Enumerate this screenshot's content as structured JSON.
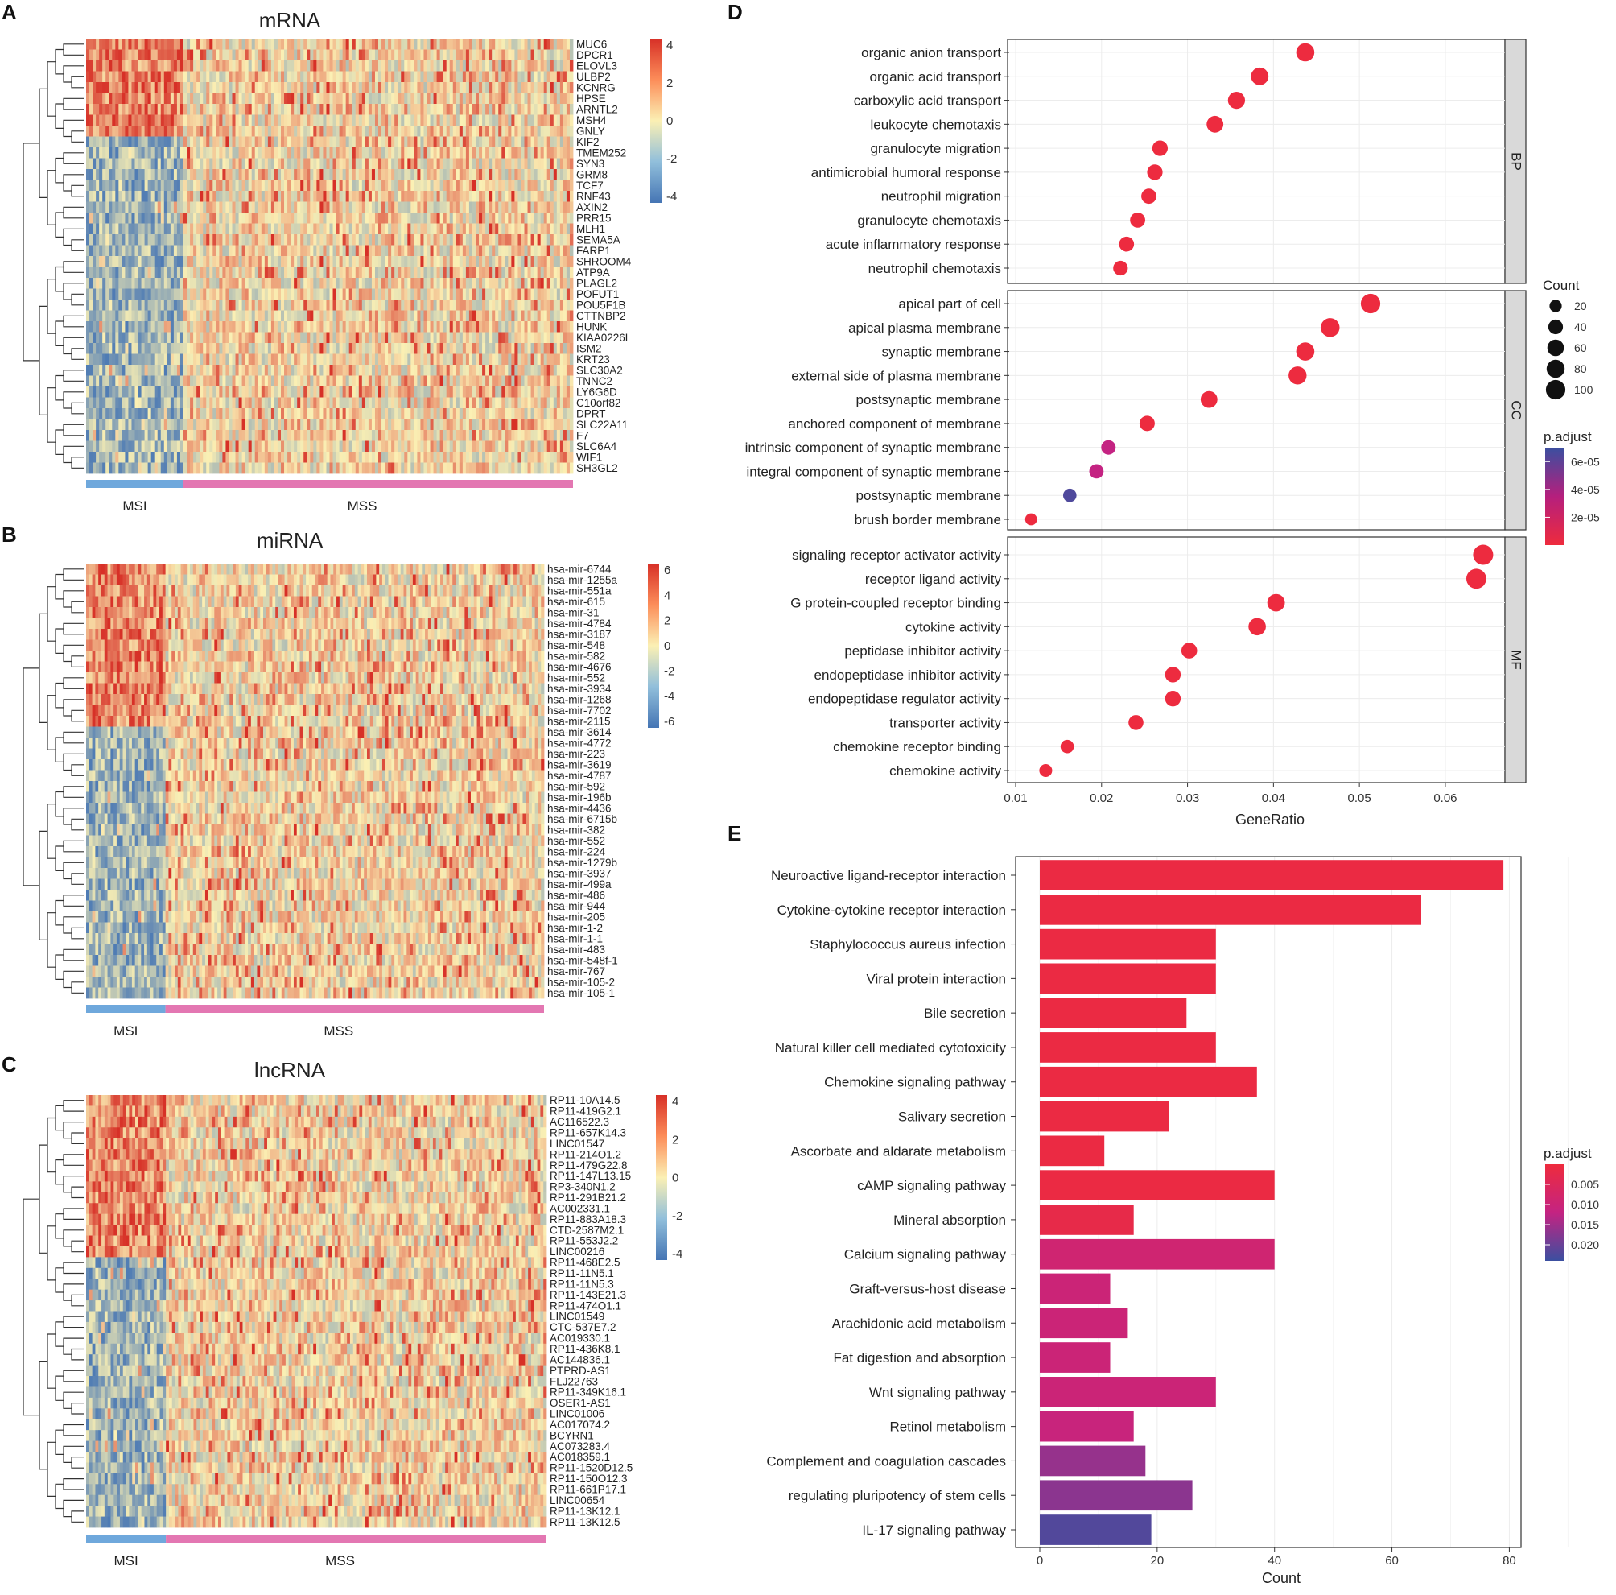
{
  "colors": {
    "heat_low": "#4575b4",
    "heat_mid": "#fbf0b4",
    "heat_high": "#d73027",
    "msi_bar": "#6fa8dc",
    "mss_bar": "#e377b2",
    "padj_low": "#ee2b3d",
    "padj_high": "#3b4fa0",
    "strip_fill": "#d9d9d9",
    "grid": "#ececec"
  },
  "chart_data": [
    {
      "panel": "A",
      "type": "heatmap",
      "title": "mRNA",
      "genes": [
        "MUC6",
        "DPCR1",
        "ELOVL3",
        "ULBP2",
        "KCNRG",
        "HPSE",
        "ARNTL2",
        "MSH4",
        "GNLY",
        "KIF2",
        "TMEM252",
        "SYN3",
        "GRM8",
        "TCF7",
        "RNF43",
        "AXIN2",
        "PRR15",
        "MLH1",
        "SEMA5A",
        "FARP1",
        "SHROOM4",
        "ATP9A",
        "PLAGL2",
        "POFUT1",
        "POU5F1B",
        "CTTNBP2",
        "HUNK",
        "KIAA0226L",
        "ISM2",
        "KRT23",
        "SLC30A2",
        "TNNC2",
        "LY6G6D",
        "C10orf82",
        "DPRT",
        "SLC22A11",
        "F7",
        "SLC6A4",
        "WIF1",
        "SH3GL2"
      ],
      "colorbar": {
        "ticks": [
          "4",
          "2",
          "0",
          "-2",
          "-4"
        ],
        "range": [
          -4,
          4
        ]
      },
      "groups": [
        {
          "label": "MSI",
          "fraction": 0.2
        },
        {
          "label": "MSS",
          "fraction": 0.8
        }
      ]
    },
    {
      "panel": "B",
      "type": "heatmap",
      "title": "miRNA",
      "genes": [
        "hsa-mir-6744",
        "hsa-mir-1255a",
        "hsa-mir-551a",
        "hsa-mir-615",
        "hsa-mir-31",
        "hsa-mir-4784",
        "hsa-mir-3187",
        "hsa-mir-548",
        "hsa-mir-582",
        "hsa-mir-4676",
        "hsa-mir-552",
        "hsa-mir-3934",
        "hsa-mir-1268",
        "hsa-mir-7702",
        "hsa-mir-2115",
        "hsa-mir-3614",
        "hsa-mir-4772",
        "hsa-mir-223",
        "hsa-mir-3619",
        "hsa-mir-4787",
        "hsa-mir-592",
        "hsa-mir-196b",
        "hsa-mir-4436",
        "hsa-mir-6715b",
        "hsa-mir-382",
        "hsa-mir-552",
        "hsa-mir-224",
        "hsa-mir-1279b",
        "hsa-mir-3937",
        "hsa-mir-499a",
        "hsa-mir-486",
        "hsa-mir-944",
        "hsa-mir-205",
        "hsa-mir-1-2",
        "hsa-mir-1-1",
        "hsa-mir-483",
        "hsa-mir-548f-1",
        "hsa-mir-767",
        "hsa-mir-105-2",
        "hsa-mir-105-1"
      ],
      "colorbar": {
        "ticks": [
          "6",
          "4",
          "2",
          "0",
          "-2",
          "-4",
          "-6"
        ],
        "range": [
          -6,
          6
        ]
      },
      "groups": [
        {
          "label": "MSI",
          "fraction": 0.17
        },
        {
          "label": "MSS",
          "fraction": 0.83
        }
      ]
    },
    {
      "panel": "C",
      "type": "heatmap",
      "title": "lncRNA",
      "genes": [
        "RP11-10A14.5",
        "RP11-419G2.1",
        "AC116522.3",
        "RP11-657K14.3",
        "LINC01547",
        "RP11-214O1.2",
        "RP11-479G22.8",
        "RP11-147L13.15",
        "RP3-340N1.2",
        "RP11-291B21.2",
        "AC002331.1",
        "RP11-883A18.3",
        "CTD-2587M2.1",
        "RP11-553J2.2",
        "LINC00216",
        "RP11-468E2.5",
        "RP11-11N5.1",
        "RP11-11N5.3",
        "RP11-143E21.3",
        "RP11-474O1.1",
        "LINC01549",
        "CTC-537E7.2",
        "AC019330.1",
        "RP11-436K8.1",
        "AC144836.1",
        "PTPRD-AS1",
        "FLJ22763",
        "RP11-349K16.1",
        "OSER1-AS1",
        "LINC01006",
        "AC017074.2",
        "BCYRN1",
        "AC073283.4",
        "AC018359.1",
        "RP11-1520D12.5",
        "RP11-150O12.3",
        "RP11-661P17.1",
        "LINC00654",
        "RP11-13K12.1",
        "RP11-13K12.5"
      ],
      "colorbar": {
        "ticks": [
          "4",
          "2",
          "0",
          "-2",
          "-4"
        ],
        "range": [
          -4,
          4
        ]
      },
      "groups": [
        {
          "label": "MSI",
          "fraction": 0.17
        },
        {
          "label": "MSS",
          "fraction": 0.83
        }
      ]
    },
    {
      "panel": "D",
      "type": "scatter",
      "xlabel": "GeneRatio",
      "xlim": [
        0.01,
        0.066
      ],
      "xticks": [
        "0.01",
        "0.02",
        "0.03",
        "0.04",
        "0.05",
        "0.06"
      ],
      "facets": [
        {
          "label": "BP",
          "terms": [
            {
              "term": "organic anion transport",
              "x": 0.0437,
              "count": 82,
              "padj": 1e-06
            },
            {
              "term": "organic acid transport",
              "x": 0.0384,
              "count": 72,
              "padj": 1e-06
            },
            {
              "term": "carboxylic acid transport",
              "x": 0.0357,
              "count": 66,
              "padj": 1e-06
            },
            {
              "term": "leukocyte chemotaxis",
              "x": 0.0332,
              "count": 62,
              "padj": 1e-06
            },
            {
              "term": "granulocyte migration",
              "x": 0.0268,
              "count": 48,
              "padj": 1e-06
            },
            {
              "term": "antimicrobial humoral response",
              "x": 0.0262,
              "count": 48,
              "padj": 1e-06
            },
            {
              "term": "neutrophil migration",
              "x": 0.0255,
              "count": 45,
              "padj": 1e-06
            },
            {
              "term": "granulocyte chemotaxis",
              "x": 0.0242,
              "count": 44,
              "padj": 1e-06
            },
            {
              "term": "acute inflammatory response",
              "x": 0.0229,
              "count": 42,
              "padj": 1e-06
            },
            {
              "term": "neutrophil chemotaxis",
              "x": 0.0222,
              "count": 40,
              "padj": 1e-06
            }
          ]
        },
        {
          "label": "CC",
          "terms": [
            {
              "term": "apical part of cell",
              "x": 0.0513,
              "count": 100,
              "padj": 1e-06
            },
            {
              "term": "apical plasma membrane",
              "x": 0.0466,
              "count": 90,
              "padj": 1e-06
            },
            {
              "term": "synaptic membrane",
              "x": 0.0437,
              "count": 82,
              "padj": 1e-06
            },
            {
              "term": "external side of plasma  membrane",
              "x": 0.0428,
              "count": 80,
              "padj": 1e-06
            },
            {
              "term": "postsynaptic membrane",
              "x": 0.0325,
              "count": 62,
              "padj": 1e-06
            },
            {
              "term": "anchored component of membrane",
              "x": 0.0253,
              "count": 46,
              "padj": 1e-06
            },
            {
              "term": "intrinsic component of  synaptic membrane",
              "x": 0.0208,
              "count": 38,
              "padj": 3.5e-05
            },
            {
              "term": "integral component of  synaptic membrane",
              "x": 0.0194,
              "count": 36,
              "padj": 3.5e-05
            },
            {
              "term": "postsynaptic membrane",
              "x": 0.0163,
              "count": 28,
              "padj": 6.5e-05
            },
            {
              "term": "brush border membrane",
              "x": 0.0118,
              "count": 18,
              "padj": 1e-06
            }
          ]
        },
        {
          "label": "MF",
          "terms": [
            {
              "term": "signaling receptor activator activity",
              "x": 0.0644,
              "count": 110,
              "padj": 1e-06
            },
            {
              "term": "receptor ligand activity",
              "x": 0.0636,
              "count": 108,
              "padj": 1e-06
            },
            {
              "term": "G protein-coupled receptor binding",
              "x": 0.0403,
              "count": 72,
              "padj": 1e-06
            },
            {
              "term": "cytokine activity",
              "x": 0.0381,
              "count": 70,
              "padj": 1e-06
            },
            {
              "term": "peptidase inhibitor activity",
              "x": 0.0302,
              "count": 52,
              "padj": 1e-06
            },
            {
              "term": "endopeptidase inhibitor activity",
              "x": 0.0283,
              "count": 50,
              "padj": 1e-06
            },
            {
              "term": "endopeptidase regulator  activity",
              "x": 0.0283,
              "count": 50,
              "padj": 1e-06
            },
            {
              "term": "transporter activity",
              "x": 0.024,
              "count": 42,
              "padj": 1e-06
            },
            {
              "term": "chemokine receptor binding",
              "x": 0.016,
              "count": 28,
              "padj": 1e-06
            },
            {
              "term": "chemokine activity",
              "x": 0.0135,
              "count": 24,
              "padj": 1e-06
            }
          ]
        }
      ],
      "size_legend": {
        "title": "Count",
        "values": [
          20,
          40,
          60,
          80,
          100
        ],
        "labels": [
          "20",
          "40",
          "60",
          "80",
          "100"
        ]
      },
      "color_legend": {
        "title": "p.adjust",
        "ticks": [
          "6e-05",
          "4e-05",
          "2e-05"
        ],
        "range": [
          0,
          7e-05
        ]
      }
    },
    {
      "panel": "E",
      "type": "bar",
      "xlabel": "Count",
      "xlim": [
        0,
        82
      ],
      "xticks": [
        "0",
        "20",
        "40",
        "60",
        "80"
      ],
      "bars": [
        {
          "term": "Neuroactive ligand-receptor interaction",
          "count": 79,
          "padj": 0.001
        },
        {
          "term": "Cytokine-cytokine receptor interaction",
          "count": 65,
          "padj": 0.001
        },
        {
          "term": "Staphylococcus aureus infection",
          "count": 30,
          "padj": 0.001
        },
        {
          "term": "Viral protein interaction",
          "count": 30,
          "padj": 0.001
        },
        {
          "term": "Bile secretion",
          "count": 25,
          "padj": 0.001
        },
        {
          "term": "Natural killer cell mediated  cytotoxicity",
          "count": 30,
          "padj": 0.001
        },
        {
          "term": "Chemokine signaling pathway",
          "count": 37,
          "padj": 0.001
        },
        {
          "term": "Salivary secretion",
          "count": 22,
          "padj": 0.001
        },
        {
          "term": "Ascorbate and aldarate  metabolism",
          "count": 11,
          "padj": 0.001
        },
        {
          "term": "cAMP signaling pathway",
          "count": 40,
          "padj": 0.001
        },
        {
          "term": "Mineral absorption",
          "count": 16,
          "padj": 0.002
        },
        {
          "term": "Calcium signaling pathway",
          "count": 40,
          "padj": 0.009
        },
        {
          "term": "Graft-versus-host disease",
          "count": 12,
          "padj": 0.01
        },
        {
          "term": "Arachidonic acid metabolism",
          "count": 15,
          "padj": 0.01
        },
        {
          "term": "Fat digestion and absorption",
          "count": 12,
          "padj": 0.01
        },
        {
          "term": "Wnt signaling pathway",
          "count": 30,
          "padj": 0.01
        },
        {
          "term": "Retinol metabolism",
          "count": 16,
          "padj": 0.011
        },
        {
          "term": "Complement and coagulation  cascades",
          "count": 18,
          "padj": 0.016
        },
        {
          "term": "regulating pluripotency of  stem cells",
          "count": 26,
          "padj": 0.017
        },
        {
          "term": "IL-17 signaling pathway",
          "count": 19,
          "padj": 0.022
        }
      ],
      "color_legend": {
        "title": "p.adjust",
        "ticks": [
          "0.005",
          "0.010",
          "0.015",
          "0.020"
        ],
        "range": [
          0,
          0.024
        ]
      }
    }
  ]
}
